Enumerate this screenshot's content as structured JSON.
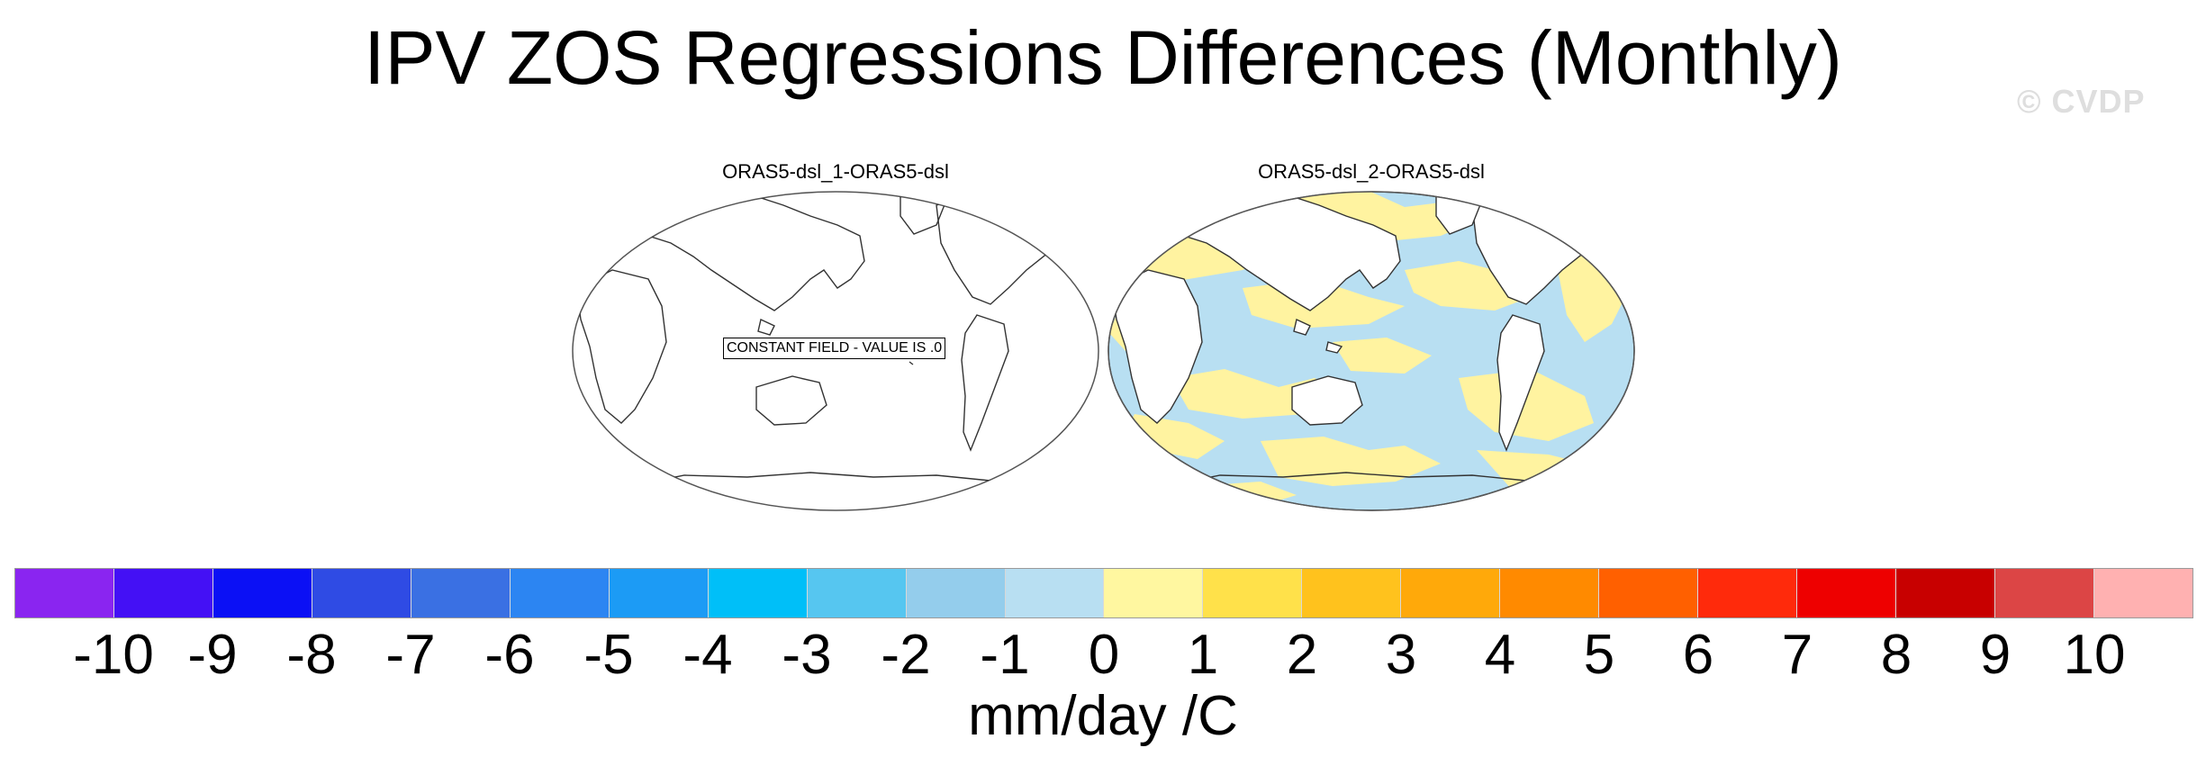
{
  "title": "IPV ZOS Regressions Differences (Monthly)",
  "watermark": "© CVDP",
  "panels": [
    {
      "title": "ORAS5-dsl_1-ORAS5-dsl",
      "field": "constant",
      "constant_label": "CONSTANT FIELD - VALUE IS .0"
    },
    {
      "title": "ORAS5-dsl_2-ORAS5-dsl",
      "field": "mixed small anomalies",
      "colors_present": [
        "#b8dff2",
        "#fff3a0"
      ]
    }
  ],
  "colorbar": {
    "units": "mm/day /C",
    "tick_labels": [
      "-10",
      "-9",
      "-8",
      "-7",
      "-6",
      "-5",
      "-4",
      "-3",
      "-2",
      "-1",
      "0",
      "1",
      "2",
      "3",
      "4",
      "5",
      "6",
      "7",
      "8",
      "9",
      "10"
    ],
    "colors": [
      "#8a25f0",
      "#4410f5",
      "#0b10f5",
      "#2f4be4",
      "#3a70e3",
      "#2c85f2",
      "#1c9bf5",
      "#00bff8",
      "#56c6f0",
      "#94cdec",
      "#b8dff2",
      "#fff7a0",
      "#ffe14a",
      "#ffc21d",
      "#ffa90a",
      "#ff8a00",
      "#ff6000",
      "#ff2a0b",
      "#ee0000",
      "#c80000",
      "#dc4545",
      "#ffb1b1"
    ]
  }
}
